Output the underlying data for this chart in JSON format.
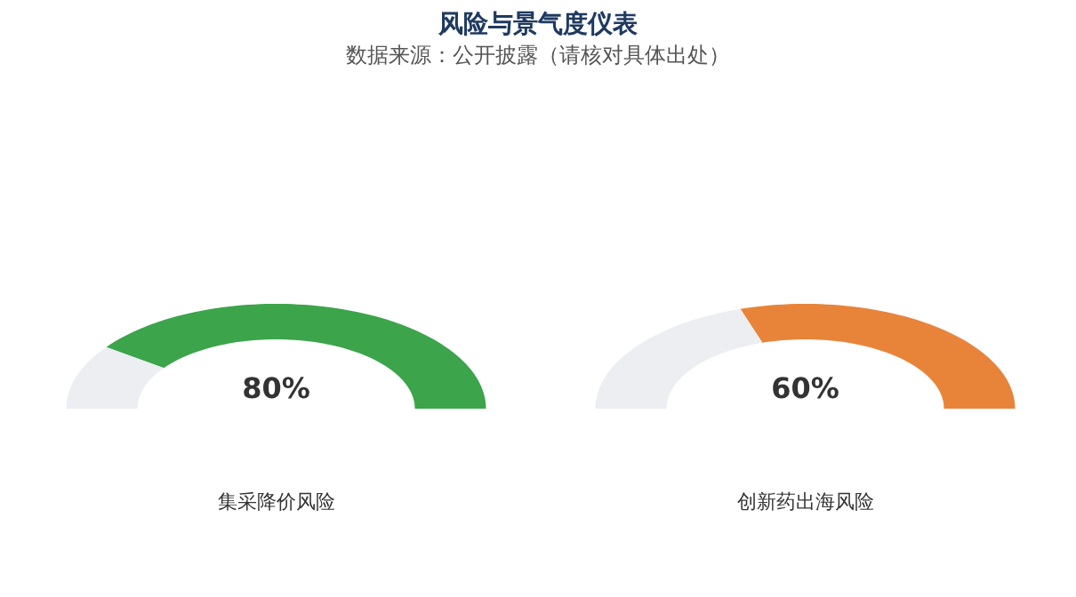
{
  "chart_data": [
    {
      "type": "donut",
      "title": "风险与景气度仪表",
      "subtitle": "数据来源：公开披露（请核对具体出处）",
      "xlabel": "集采降价风险",
      "categories": [
        null,
        null
      ],
      "values": [
        80,
        20
      ],
      "colors": [
        "#3ca44b",
        "#eceef1"
      ],
      "value_labels": [
        "80%",
        null
      ]
    },
    {
      "type": "donut",
      "xlabel": "创新药出海风险",
      "categories": [
        null,
        null
      ],
      "values": [
        60,
        40
      ],
      "colors": [
        "#e8843a",
        "#eceef1"
      ],
      "value_labels": [
        "60%",
        null
      ]
    }
  ]
}
